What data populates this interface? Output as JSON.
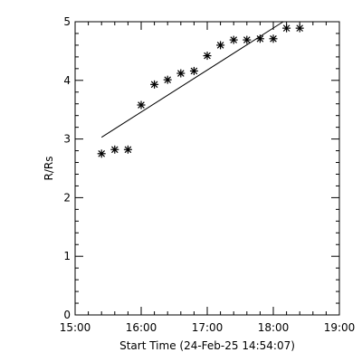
{
  "chart_data": {
    "type": "scatter",
    "xlabel": "Start Time (24-Feb-25 14:54:07)",
    "ylabel": "R/Rs",
    "x_unit": "time",
    "xlim": [
      "15:00",
      "19:00"
    ],
    "ylim": [
      0,
      5
    ],
    "x_major_ticks": [
      "15:00",
      "16:00",
      "17:00",
      "18:00",
      "19:00"
    ],
    "y_major_ticks": [
      "0",
      "1",
      "2",
      "3",
      "4",
      "5"
    ],
    "x_minor_per_major": 5,
    "y_minor_per_major": 5,
    "grid": false,
    "legend": "none",
    "series": [
      {
        "marker": "asterisk",
        "color": "#000000",
        "points": [
          {
            "x": "15:24",
            "y": 2.75
          },
          {
            "x": "15:36",
            "y": 2.82
          },
          {
            "x": "15:48",
            "y": 2.82
          },
          {
            "x": "16:00",
            "y": 3.58
          },
          {
            "x": "16:12",
            "y": 3.93
          },
          {
            "x": "16:24",
            "y": 4.01
          },
          {
            "x": "16:36",
            "y": 4.12
          },
          {
            "x": "16:48",
            "y": 4.16
          },
          {
            "x": "17:00",
            "y": 4.42
          },
          {
            "x": "17:12",
            "y": 4.6
          },
          {
            "x": "17:24",
            "y": 4.69
          },
          {
            "x": "17:36",
            "y": 4.69
          },
          {
            "x": "17:48",
            "y": 4.71
          },
          {
            "x": "18:00",
            "y": 4.71
          },
          {
            "x": "18:12",
            "y": 4.89
          },
          {
            "x": "18:24",
            "y": 4.89
          }
        ]
      },
      {
        "kind": "fit-line",
        "color": "#000000",
        "points": [
          {
            "x": "15:24",
            "y": 3.03
          },
          {
            "x": "18:09",
            "y": 5.0
          }
        ]
      }
    ]
  }
}
